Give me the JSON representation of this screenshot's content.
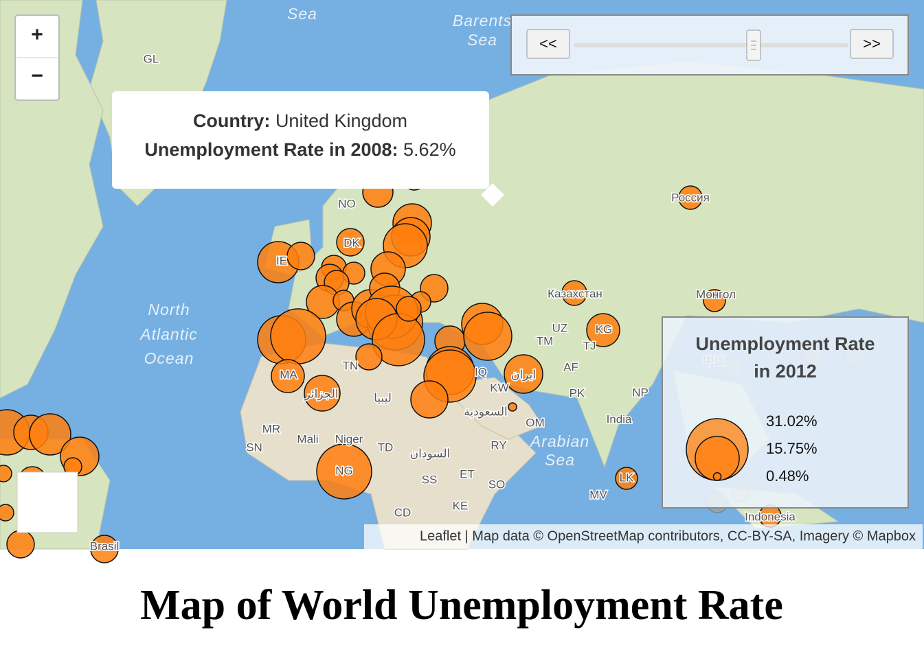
{
  "zoom": {
    "in": "+",
    "out": "−"
  },
  "slider": {
    "prev": "<<",
    "next": ">>"
  },
  "tooltip": {
    "country_label": "Country:",
    "country": "United Kingdom",
    "rate_label": "Unemployment Rate in 2008:",
    "rate": "5.62%"
  },
  "legend": {
    "title_lines": [
      "Unemployment Rate",
      "in 2012"
    ],
    "items": [
      {
        "value": 31.02,
        "label": "31.02%"
      },
      {
        "value": 15.75,
        "label": "15.75%"
      },
      {
        "value": 0.48,
        "label": "0.48%"
      }
    ]
  },
  "map_labels": [
    "Sea",
    "Barents",
    "Sea",
    "GL",
    "NO",
    "DK",
    "IE",
    "North",
    "Atlantic",
    "Ocean",
    "TN",
    "MA",
    "الجزائر",
    "ليبيا",
    "MR",
    "Mali",
    "Niger",
    "TD",
    "SN",
    "NG",
    "السودان",
    "SS",
    "ET",
    "SO",
    "KE",
    "CD",
    "RY",
    "OM",
    "السعودية",
    "KW",
    "IQ",
    "ایران",
    "Arabian",
    "Sea",
    "UZ",
    "TM",
    "AF",
    "PK",
    "KG",
    "TJ",
    "NP",
    "India",
    "MV",
    "LK",
    "Россия",
    "Казахстан",
    "Монгол",
    "中国",
    "Indonesia",
    "Brasil"
  ],
  "attribution": "Leaflet | Map data © OpenStreetMap contributors, CC-BY-SA, Imagery © Mapbox",
  "title": "Map of World Unemployment Rate"
}
